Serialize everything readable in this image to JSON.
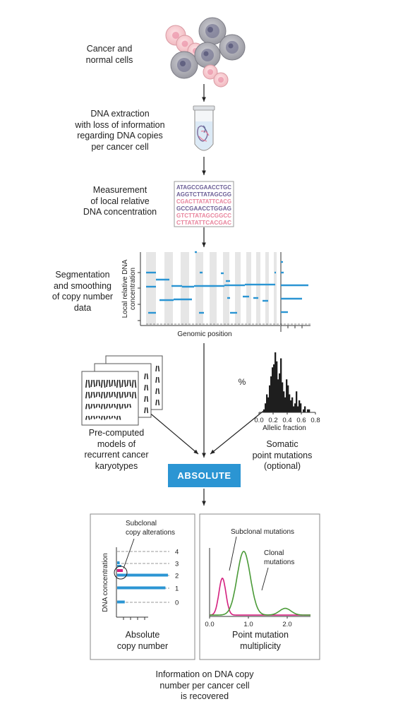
{
  "steps": {
    "cells": [
      "Cancer and",
      "normal cells"
    ],
    "extraction": [
      "DNA extraction",
      "with loss of information",
      "regarding DNA copies",
      "per cancer cell"
    ],
    "measurement": [
      "Measurement",
      "of local relative",
      "DNA concentration"
    ],
    "segmentation": [
      "Segmentation",
      "and smoothing",
      "of copy number",
      "data"
    ]
  },
  "sequence_lines": [
    {
      "text": "ATAGCCGAACCTGC",
      "color": "#6b5e96"
    },
    {
      "text": "AGGTCTTATAGCGG",
      "color": "#6b5e96"
    },
    {
      "text": "CGACTTATATTCACG",
      "color": "#e8839c"
    },
    {
      "text": "GCCGAACCTGGAG",
      "color": "#6b5e96"
    },
    {
      "text": "GTCTTATAGCGGCC",
      "color": "#e8839c"
    },
    {
      "text": "CTTATATTCACGAC",
      "color": "#e8839c"
    }
  ],
  "segmentation_plot": {
    "ylabel_lines": [
      "Local relative DNA",
      "concentration"
    ],
    "xlabel": "Genomic position"
  },
  "karyotype_label": [
    "Pre-computed",
    "models of",
    "recurrent cancer",
    "karyotypes"
  ],
  "somatic_label": [
    "Somatic",
    "point mutations",
    "(optional)"
  ],
  "absolute_label": "ABSOLUTE",
  "result_label": [
    "Information on DNA copy",
    "number per cancer cell",
    "is recovered"
  ],
  "colors": {
    "accent": "#2b95d3",
    "subclonal": "#d4207f",
    "clonal": "#4a9a37"
  },
  "chart_data": [
    {
      "type": "bar",
      "ylabel": "%",
      "xlabel": "Allelic fraction",
      "x_ticks": [
        "0.0",
        "0.2",
        "0.4",
        "0.6",
        "0.8"
      ],
      "xlim": [
        0,
        0.8
      ],
      "bin_width": 0.02,
      "bin_starts": [
        0.06,
        0.08,
        0.1,
        0.12,
        0.14,
        0.16,
        0.18,
        0.2,
        0.22,
        0.24,
        0.26,
        0.28,
        0.3,
        0.32,
        0.34,
        0.36,
        0.38,
        0.4,
        0.42,
        0.44,
        0.46,
        0.48,
        0.5,
        0.52,
        0.54,
        0.56,
        0.58,
        0.6,
        0.62,
        0.64,
        0.66,
        0.68,
        0.7
      ],
      "values": [
        2,
        6,
        12,
        10,
        18,
        24,
        30,
        32,
        40,
        34,
        22,
        26,
        36,
        20,
        14,
        10,
        22,
        18,
        12,
        8,
        10,
        4,
        6,
        14,
        4,
        8,
        6,
        0,
        2,
        4,
        0,
        2,
        2
      ]
    },
    {
      "type": "bar",
      "title": "Absolute copy number",
      "ylabel": "DNA concentration",
      "annotation": "Subclonal copy alterations",
      "levels": [
        "4",
        "3",
        "2",
        "1",
        "0"
      ],
      "segment_extent": [
        0.35,
        1.0,
        0.95,
        0.8,
        0.15
      ]
    },
    {
      "type": "line",
      "title": "Point mutation multiplicity",
      "x_ticks": [
        "0.0",
        "1.0",
        "2.0"
      ],
      "xlim": [
        0,
        2.6
      ],
      "series": [
        {
          "name": "Subclonal mutations",
          "color": "#d4207f",
          "peaks": [
            {
              "mu": 0.33,
              "sigma": 0.09,
              "height": 0.55
            }
          ]
        },
        {
          "name": "Clonal mutations",
          "color": "#4a9a37",
          "peaks": [
            {
              "mu": 0.88,
              "sigma": 0.17,
              "height": 0.95
            },
            {
              "mu": 1.95,
              "sigma": 0.15,
              "height": 0.1
            }
          ]
        }
      ]
    }
  ]
}
